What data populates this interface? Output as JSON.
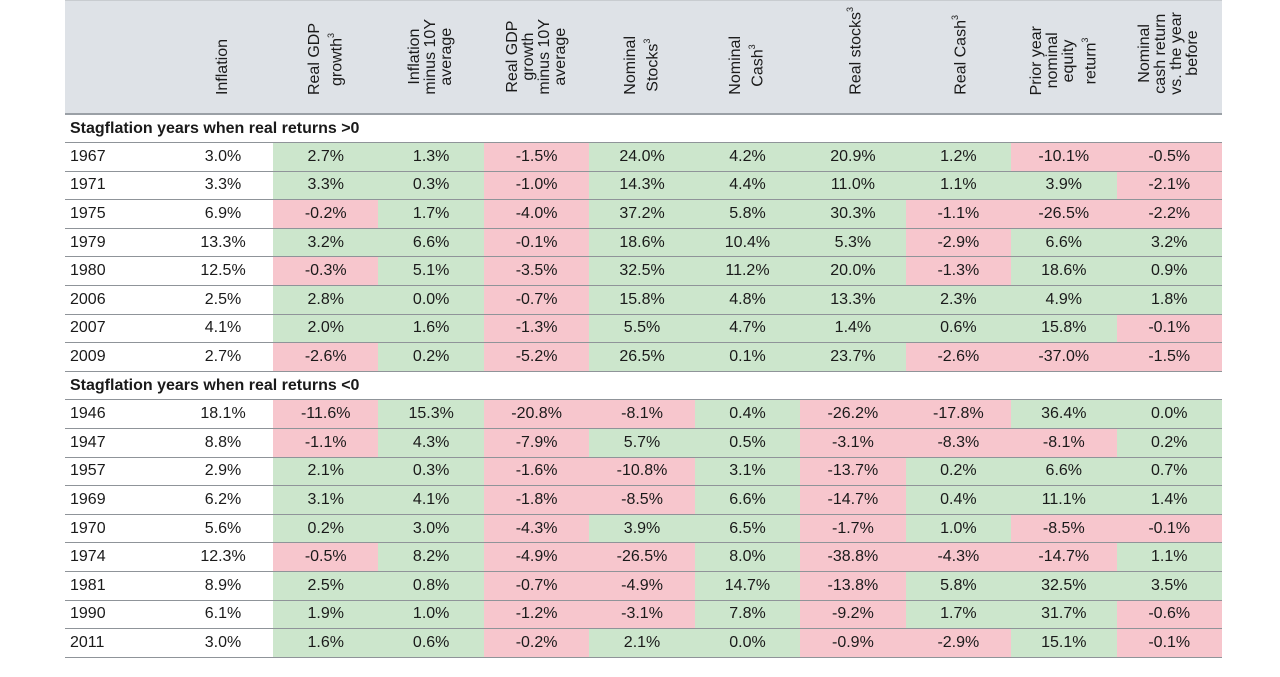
{
  "colors": {
    "positive": "#cce6cc",
    "negative": "#f7c6cd",
    "header": "#dee2e7"
  },
  "columns": [
    {
      "label": "Inflation",
      "sup": ""
    },
    {
      "label": "Real GDP\ngrowth",
      "sup": "3"
    },
    {
      "label": "Inflation\nminus 10Y\naverage",
      "sup": ""
    },
    {
      "label": "Real GDP\ngrowth\nminus 10Y\naverage",
      "sup": ""
    },
    {
      "label": "Nominal\nStocks",
      "sup": "3"
    },
    {
      "label": "Nominal\nCash",
      "sup": "3"
    },
    {
      "label": "Real stocks",
      "sup": "3"
    },
    {
      "label": "Real Cash",
      "sup": "3"
    },
    {
      "label": "Prior year\nnominal\nequity\nreturn",
      "sup": "3"
    },
    {
      "label": "Nominal\ncash return\nvs. the year\nbefore",
      "sup": ""
    }
  ],
  "sections": [
    {
      "title": "Stagflation years when real returns >0",
      "rows": [
        [
          "1967",
          "3.0%",
          "2.7%",
          "1.3%",
          "-1.5%",
          "24.0%",
          "4.2%",
          "20.9%",
          "1.2%",
          "-10.1%",
          "-0.5%"
        ],
        [
          "1971",
          "3.3%",
          "3.3%",
          "0.3%",
          "-1.0%",
          "14.3%",
          "4.4%",
          "11.0%",
          "1.1%",
          "3.9%",
          "-2.1%"
        ],
        [
          "1975",
          "6.9%",
          "-0.2%",
          "1.7%",
          "-4.0%",
          "37.2%",
          "5.8%",
          "30.3%",
          "-1.1%",
          "-26.5%",
          "-2.2%"
        ],
        [
          "1979",
          "13.3%",
          "3.2%",
          "6.6%",
          "-0.1%",
          "18.6%",
          "10.4%",
          "5.3%",
          "-2.9%",
          "6.6%",
          "3.2%"
        ],
        [
          "1980",
          "12.5%",
          "-0.3%",
          "5.1%",
          "-3.5%",
          "32.5%",
          "11.2%",
          "20.0%",
          "-1.3%",
          "18.6%",
          "0.9%"
        ],
        [
          "2006",
          "2.5%",
          "2.8%",
          "0.0%",
          "-0.7%",
          "15.8%",
          "4.8%",
          "13.3%",
          "2.3%",
          "4.9%",
          "1.8%"
        ],
        [
          "2007",
          "4.1%",
          "2.0%",
          "1.6%",
          "-1.3%",
          "5.5%",
          "4.7%",
          "1.4%",
          "0.6%",
          "15.8%",
          "-0.1%"
        ],
        [
          "2009",
          "2.7%",
          "-2.6%",
          "0.2%",
          "-5.2%",
          "26.5%",
          "0.1%",
          "23.7%",
          "-2.6%",
          "-37.0%",
          "-1.5%"
        ]
      ]
    },
    {
      "title": "Stagflation years when real returns <0",
      "rows": [
        [
          "1946",
          "18.1%",
          "-11.6%",
          "15.3%",
          "-20.8%",
          "-8.1%",
          "0.4%",
          "-26.2%",
          "-17.8%",
          "36.4%",
          "0.0%"
        ],
        [
          "1947",
          "8.8%",
          "-1.1%",
          "4.3%",
          "-7.9%",
          "5.7%",
          "0.5%",
          "-3.1%",
          "-8.3%",
          "-8.1%",
          "0.2%"
        ],
        [
          "1957",
          "2.9%",
          "2.1%",
          "0.3%",
          "-1.6%",
          "-10.8%",
          "3.1%",
          "-13.7%",
          "0.2%",
          "6.6%",
          "0.7%"
        ],
        [
          "1969",
          "6.2%",
          "3.1%",
          "4.1%",
          "-1.8%",
          "-8.5%",
          "6.6%",
          "-14.7%",
          "0.4%",
          "11.1%",
          "1.4%"
        ],
        [
          "1970",
          "5.6%",
          "0.2%",
          "3.0%",
          "-4.3%",
          "3.9%",
          "6.5%",
          "-1.7%",
          "1.0%",
          "-8.5%",
          "-0.1%"
        ],
        [
          "1974",
          "12.3%",
          "-0.5%",
          "8.2%",
          "-4.9%",
          "-26.5%",
          "8.0%",
          "-38.8%",
          "-4.3%",
          "-14.7%",
          "1.1%"
        ],
        [
          "1981",
          "8.9%",
          "2.5%",
          "0.8%",
          "-0.7%",
          "-4.9%",
          "14.7%",
          "-13.8%",
          "5.8%",
          "32.5%",
          "3.5%"
        ],
        [
          "1990",
          "6.1%",
          "1.9%",
          "1.0%",
          "-1.2%",
          "-3.1%",
          "7.8%",
          "-9.2%",
          "1.7%",
          "31.7%",
          "-0.6%"
        ],
        [
          "2011",
          "3.0%",
          "1.6%",
          "0.6%",
          "-0.2%",
          "2.1%",
          "0.0%",
          "-0.9%",
          "-2.9%",
          "15.1%",
          "-0.1%"
        ]
      ]
    }
  ]
}
